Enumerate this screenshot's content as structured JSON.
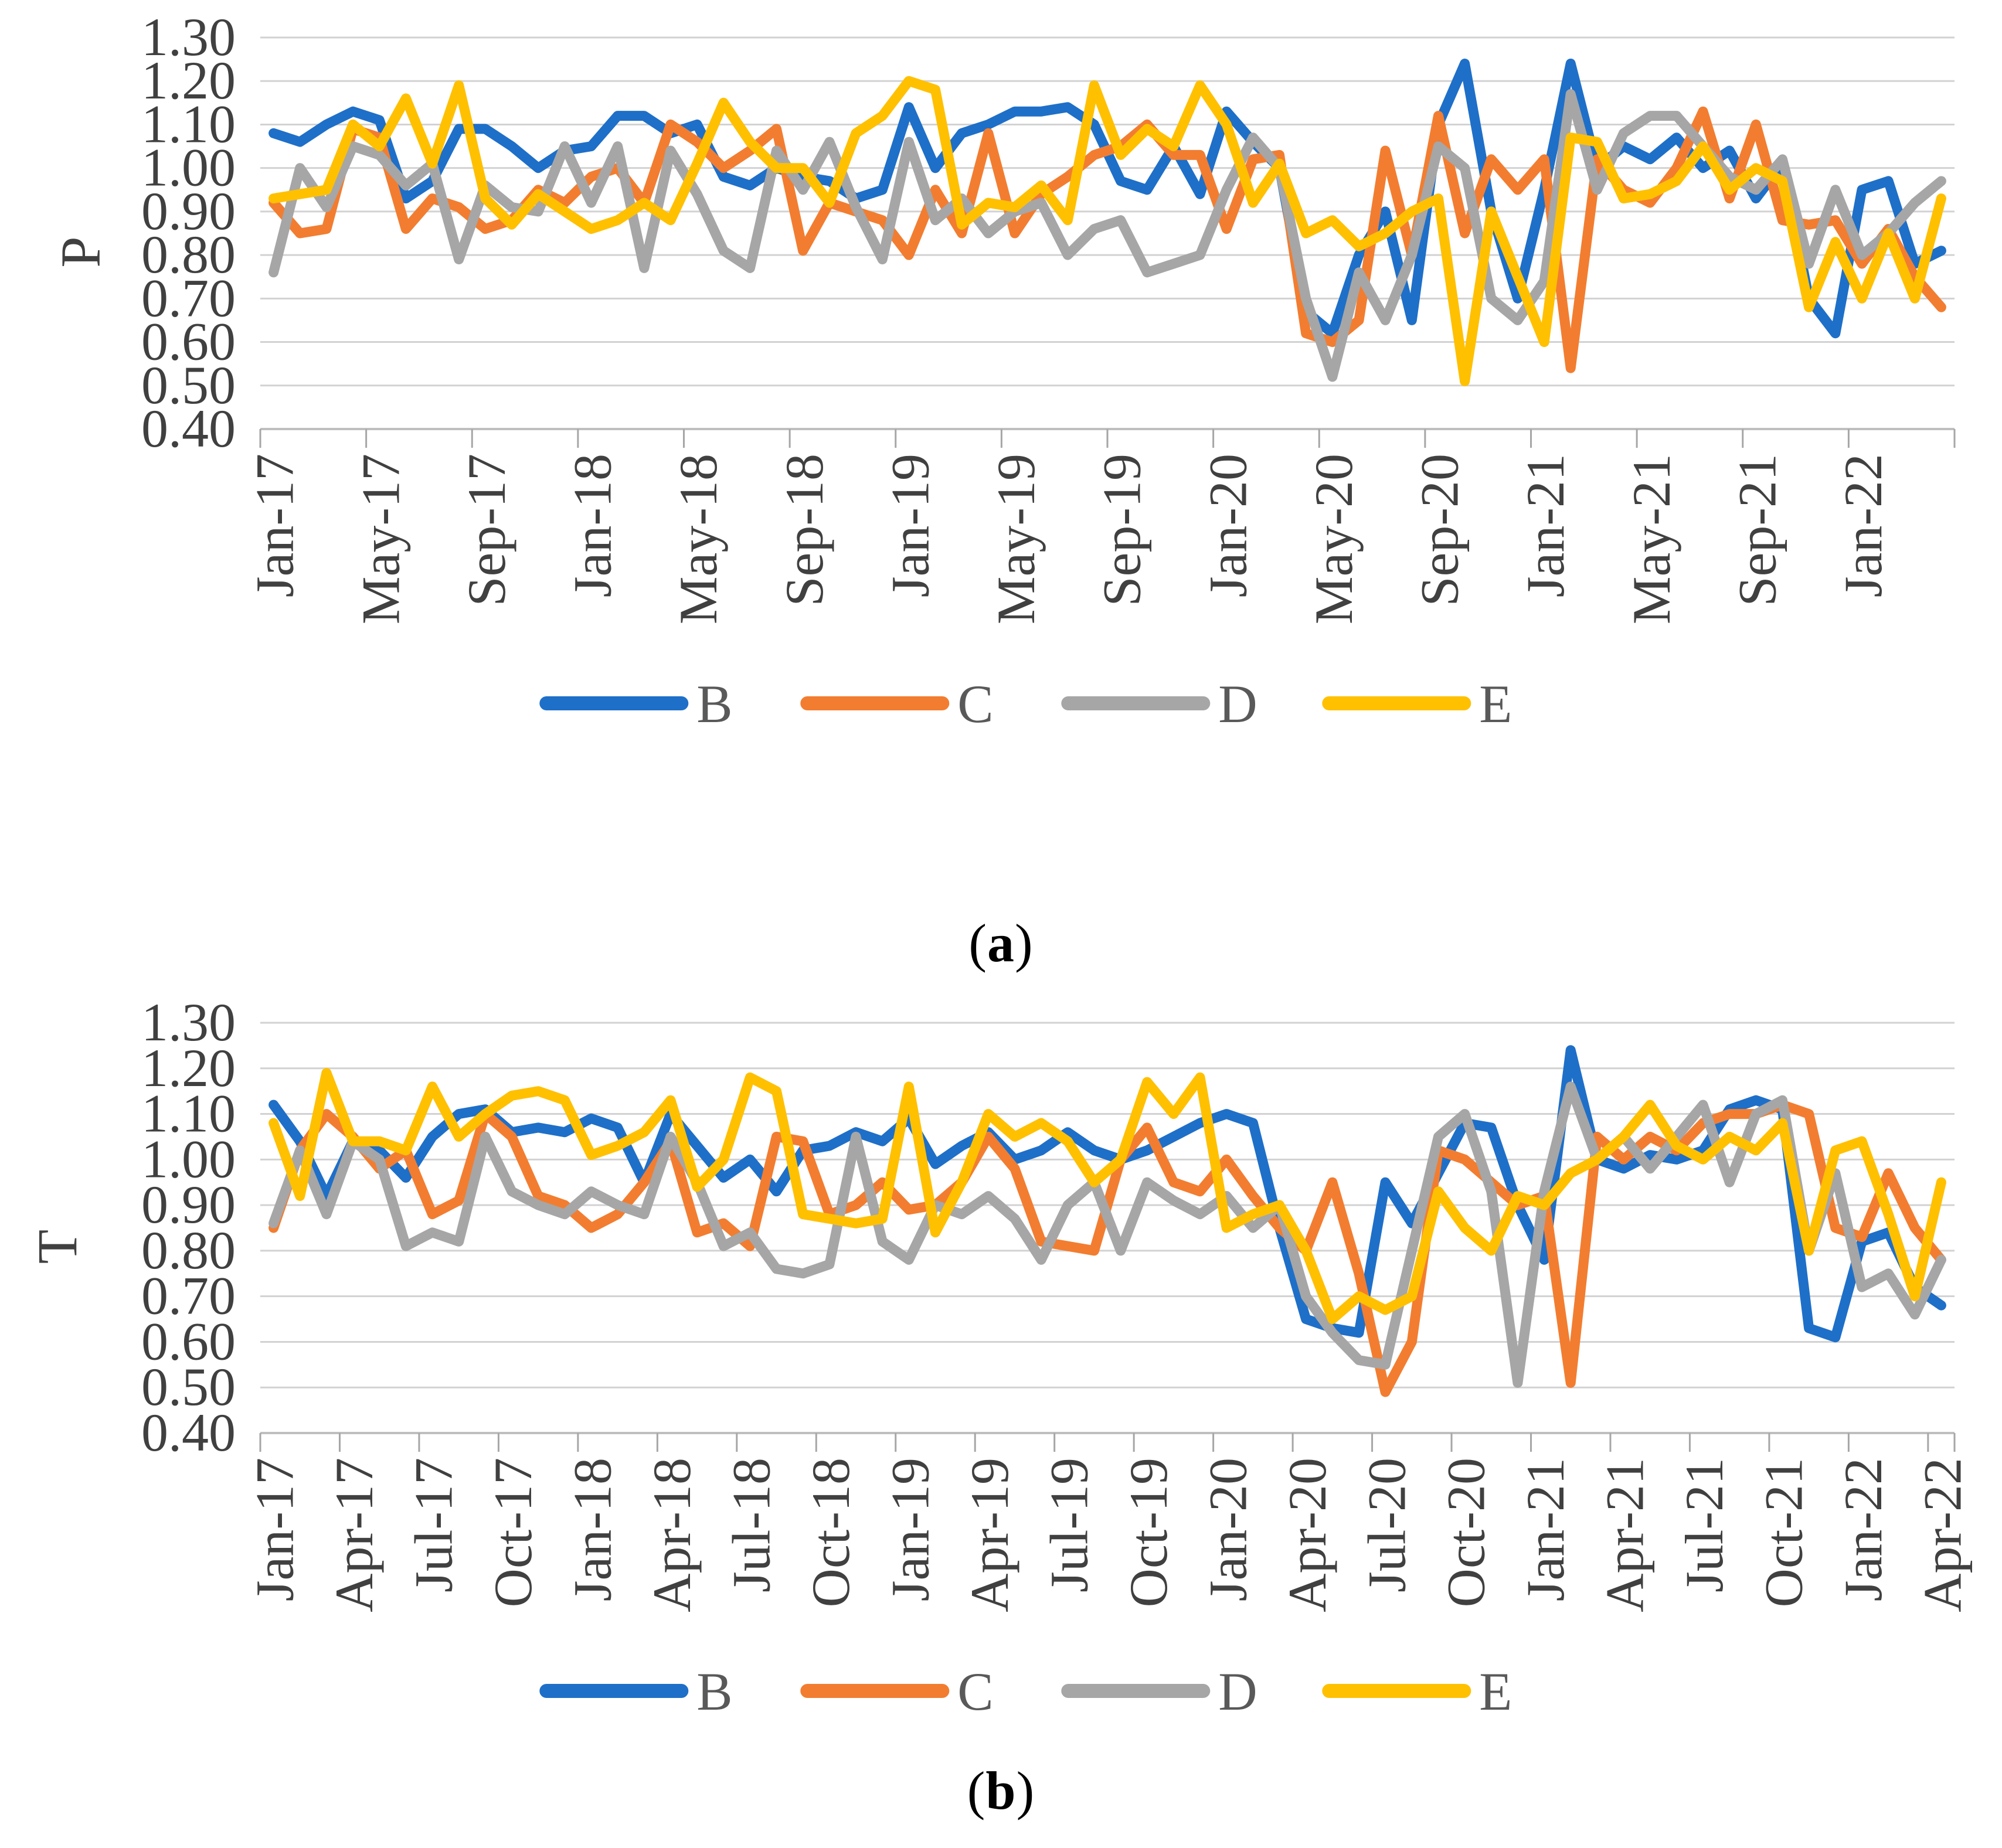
{
  "figure": {
    "charts": [
      {
        "ylabel": "P",
        "caption_open": "(",
        "caption_letter": "a",
        "caption_close": ")"
      },
      {
        "ylabel": "T",
        "caption_open": "(",
        "caption_letter": "b",
        "caption_close": ")"
      }
    ]
  },
  "colors": {
    "series_b": "#1E6FC8",
    "series_c": "#F27D30",
    "series_d": "#A6A6A6",
    "series_e": "#FFC000",
    "grid": "#D2D2D2",
    "axis": "#BFBFBF",
    "tick": "#A6A6A6",
    "text": "#404040",
    "legend_text": "#595959"
  },
  "chart_data": [
    {
      "type": "line",
      "title": "",
      "xlabel": "",
      "ylabel": "P",
      "ylim": [
        0.4,
        1.3
      ],
      "ytick_labels": [
        "1.30",
        "1.20",
        "1.10",
        "1.00",
        "0.90",
        "0.80",
        "0.70",
        "0.60",
        "0.50",
        "0.40"
      ],
      "grid": true,
      "legend_position": "bottom",
      "x_tick_every": 4,
      "x_tick_labels": [
        "Jan-17",
        "May-17",
        "Sep-17",
        "Jan-18",
        "May-18",
        "Sep-18",
        "Jan-19",
        "May-19",
        "Sep-19",
        "Jan-20",
        "May-20",
        "Sep-20",
        "Jan-21",
        "May-21",
        "Sep-21",
        "Jan-22"
      ],
      "categories": [
        "Jan-17",
        "Feb-17",
        "Mar-17",
        "Apr-17",
        "May-17",
        "Jun-17",
        "Jul-17",
        "Aug-17",
        "Sep-17",
        "Oct-17",
        "Nov-17",
        "Dec-17",
        "Jan-18",
        "Feb-18",
        "Mar-18",
        "Apr-18",
        "May-18",
        "Jun-18",
        "Jul-18",
        "Aug-18",
        "Sep-18",
        "Oct-18",
        "Nov-18",
        "Dec-18",
        "Jan-19",
        "Feb-19",
        "Mar-19",
        "Apr-19",
        "May-19",
        "Jun-19",
        "Jul-19",
        "Aug-19",
        "Sep-19",
        "Oct-19",
        "Nov-19",
        "Dec-19",
        "Jan-20",
        "Feb-20",
        "Mar-20",
        "Apr-20",
        "May-20",
        "Jun-20",
        "Jul-20",
        "Aug-20",
        "Sep-20",
        "Oct-20",
        "Nov-20",
        "Dec-20",
        "Jan-21",
        "Feb-21",
        "Mar-21",
        "Apr-21",
        "May-21",
        "Jun-21",
        "Jul-21",
        "Aug-21",
        "Sep-21",
        "Oct-21",
        "Nov-21",
        "Dec-21",
        "Jan-22",
        "Feb-22",
        "Mar-22",
        "Apr-22"
      ],
      "series": [
        {
          "name": "B",
          "color": "#1E6FC8",
          "values": [
            1.08,
            1.06,
            1.1,
            1.13,
            1.11,
            0.93,
            0.97,
            1.09,
            1.09,
            1.05,
            1.0,
            1.04,
            1.05,
            1.12,
            1.12,
            1.08,
            1.1,
            0.98,
            0.96,
            1.0,
            0.98,
            0.97,
            0.93,
            0.95,
            1.14,
            1.0,
            1.08,
            1.1,
            1.13,
            1.13,
            1.14,
            1.1,
            0.97,
            0.95,
            1.05,
            0.94,
            1.13,
            1.06,
            1.0,
            0.67,
            0.62,
            0.8,
            0.9,
            0.65,
            1.1,
            1.24,
            0.9,
            0.7,
            0.95,
            1.24,
            1.0,
            1.05,
            1.02,
            1.07,
            1.0,
            1.04,
            0.93,
            1.01,
            0.7,
            0.62,
            0.95,
            0.97,
            0.78,
            0.81
          ]
        },
        {
          "name": "C",
          "color": "#F27D30",
          "values": [
            0.92,
            0.85,
            0.86,
            1.09,
            1.07,
            0.86,
            0.93,
            0.91,
            0.86,
            0.88,
            0.95,
            0.92,
            0.98,
            1.0,
            0.92,
            1.1,
            1.06,
            1.0,
            1.04,
            1.09,
            0.81,
            0.92,
            0.9,
            0.88,
            0.8,
            0.95,
            0.85,
            1.08,
            0.85,
            0.94,
            0.98,
            1.03,
            1.05,
            1.1,
            1.03,
            1.03,
            0.86,
            1.02,
            1.03,
            0.62,
            0.6,
            0.65,
            1.04,
            0.8,
            1.12,
            0.85,
            1.02,
            0.95,
            1.02,
            0.54,
            1.02,
            0.95,
            0.92,
            1.0,
            1.13,
            0.93,
            1.1,
            0.88,
            0.87,
            0.88,
            0.78,
            0.86,
            0.75,
            0.68
          ]
        },
        {
          "name": "D",
          "color": "#A6A6A6",
          "values": [
            0.76,
            1.0,
            0.91,
            1.05,
            1.03,
            0.96,
            1.01,
            0.79,
            0.96,
            0.91,
            0.9,
            1.05,
            0.92,
            1.05,
            0.77,
            1.04,
            0.94,
            0.81,
            0.77,
            1.04,
            0.95,
            1.06,
            0.91,
            0.79,
            1.06,
            0.88,
            0.93,
            0.85,
            0.9,
            0.92,
            0.8,
            0.86,
            0.88,
            0.76,
            0.78,
            0.8,
            0.95,
            1.07,
            1.0,
            0.7,
            0.52,
            0.76,
            0.65,
            0.8,
            1.05,
            1.0,
            0.7,
            0.65,
            0.74,
            1.17,
            0.95,
            1.08,
            1.12,
            1.12,
            1.05,
            0.98,
            0.95,
            1.02,
            0.78,
            0.95,
            0.8,
            0.85,
            0.92,
            0.97
          ]
        },
        {
          "name": "E",
          "color": "#FFC000",
          "values": [
            0.93,
            0.94,
            0.95,
            1.1,
            1.05,
            1.16,
            1.01,
            1.19,
            0.93,
            0.87,
            0.94,
            0.9,
            0.86,
            0.88,
            0.92,
            0.88,
            1.01,
            1.15,
            1.06,
            1.0,
            1.0,
            0.92,
            1.08,
            1.12,
            1.2,
            1.18,
            0.87,
            0.92,
            0.91,
            0.96,
            0.88,
            1.19,
            1.03,
            1.09,
            1.05,
            1.19,
            1.1,
            0.92,
            1.01,
            0.85,
            0.88,
            0.82,
            0.85,
            0.9,
            0.93,
            0.51,
            0.9,
            0.75,
            0.6,
            1.07,
            1.06,
            0.93,
            0.94,
            0.97,
            1.05,
            0.95,
            1.0,
            0.97,
            0.68,
            0.83,
            0.7,
            0.85,
            0.7,
            0.93
          ]
        }
      ]
    },
    {
      "type": "line",
      "title": "",
      "xlabel": "",
      "ylabel": "T",
      "ylim": [
        0.4,
        1.3
      ],
      "ytick_labels": [
        "1.30",
        "1.20",
        "1.10",
        "1.00",
        "0.90",
        "0.80",
        "0.70",
        "0.60",
        "0.50",
        "0.40"
      ],
      "grid": true,
      "legend_position": "bottom",
      "x_tick_every": 3,
      "x_tick_labels": [
        "Jan-17",
        "Apr-17",
        "Jul-17",
        "Oct-17",
        "Jan-18",
        "Apr-18",
        "Jul-18",
        "Oct-18",
        "Jan-19",
        "Apr-19",
        "Jul-19",
        "Oct-19",
        "Jan-20",
        "Apr-20",
        "Jul-20",
        "Oct-20",
        "Jan-21",
        "Apr-21",
        "Jul-21",
        "Oct-21",
        "Jan-22",
        "Apr-22"
      ],
      "categories": [
        "Jan-17",
        "Feb-17",
        "Mar-17",
        "Apr-17",
        "May-17",
        "Jun-17",
        "Jul-17",
        "Aug-17",
        "Sep-17",
        "Oct-17",
        "Nov-17",
        "Dec-17",
        "Jan-18",
        "Feb-18",
        "Mar-18",
        "Apr-18",
        "May-18",
        "Jun-18",
        "Jul-18",
        "Aug-18",
        "Sep-18",
        "Oct-18",
        "Nov-18",
        "Dec-18",
        "Jan-19",
        "Feb-19",
        "Mar-19",
        "Apr-19",
        "May-19",
        "Jun-19",
        "Jul-19",
        "Aug-19",
        "Sep-19",
        "Oct-19",
        "Nov-19",
        "Dec-19",
        "Jan-20",
        "Feb-20",
        "Mar-20",
        "Apr-20",
        "May-20",
        "Jun-20",
        "Jul-20",
        "Aug-20",
        "Sep-20",
        "Oct-20",
        "Nov-20",
        "Dec-20",
        "Jan-21",
        "Feb-21",
        "Mar-21",
        "Apr-21",
        "May-21",
        "Jun-21",
        "Jul-21",
        "Aug-21",
        "Sep-21",
        "Oct-21",
        "Nov-21",
        "Dec-21",
        "Jan-22",
        "Feb-22",
        "Mar-22",
        "Apr-22"
      ],
      "series": [
        {
          "name": "B",
          "color": "#1E6FC8",
          "values": [
            1.12,
            1.04,
            0.92,
            1.04,
            1.02,
            0.96,
            1.05,
            1.1,
            1.11,
            1.06,
            1.07,
            1.06,
            1.09,
            1.07,
            0.95,
            1.1,
            1.03,
            0.96,
            1.0,
            0.93,
            1.02,
            1.03,
            1.06,
            1.04,
            1.09,
            0.99,
            1.03,
            1.06,
            1.0,
            1.02,
            1.06,
            1.02,
            1.0,
            1.02,
            1.05,
            1.08,
            1.1,
            1.08,
            0.85,
            0.65,
            0.63,
            0.62,
            0.95,
            0.86,
            0.97,
            1.08,
            1.07,
            0.9,
            0.78,
            1.24,
            1.0,
            0.98,
            1.01,
            1.0,
            1.02,
            1.11,
            1.13,
            1.11,
            0.63,
            0.61,
            0.82,
            0.84,
            0.72,
            0.68
          ]
        },
        {
          "name": "C",
          "color": "#F27D30",
          "values": [
            0.85,
            1.02,
            1.1,
            1.05,
            0.98,
            1.02,
            0.88,
            0.91,
            1.1,
            1.05,
            0.92,
            0.9,
            0.85,
            0.88,
            0.95,
            1.04,
            0.84,
            0.86,
            0.81,
            1.05,
            1.04,
            0.88,
            0.9,
            0.95,
            0.89,
            0.9,
            0.95,
            1.05,
            0.98,
            0.82,
            0.81,
            0.8,
            1.0,
            1.07,
            0.95,
            0.93,
            1.0,
            0.92,
            0.85,
            0.8,
            0.95,
            0.75,
            0.49,
            0.6,
            1.02,
            1.0,
            0.95,
            0.9,
            0.92,
            0.51,
            1.05,
            1.0,
            1.05,
            1.02,
            1.08,
            1.1,
            1.1,
            1.12,
            1.1,
            0.85,
            0.83,
            0.97,
            0.85,
            0.78
          ]
        },
        {
          "name": "D",
          "color": "#A6A6A6",
          "values": [
            0.86,
            1.02,
            0.88,
            1.04,
            1.0,
            0.81,
            0.84,
            0.82,
            1.05,
            0.93,
            0.9,
            0.88,
            0.93,
            0.9,
            0.88,
            1.05,
            0.95,
            0.81,
            0.84,
            0.76,
            0.75,
            0.77,
            1.05,
            0.82,
            0.78,
            0.9,
            0.88,
            0.92,
            0.87,
            0.78,
            0.9,
            0.95,
            0.8,
            0.95,
            0.91,
            0.88,
            0.92,
            0.85,
            0.9,
            0.7,
            0.62,
            0.56,
            0.55,
            0.8,
            1.05,
            1.1,
            0.93,
            0.51,
            0.93,
            1.16,
            1.0,
            1.05,
            0.98,
            1.05,
            1.12,
            0.95,
            1.1,
            1.13,
            0.8,
            0.97,
            0.72,
            0.75,
            0.66,
            0.78
          ]
        },
        {
          "name": "E",
          "color": "#FFC000",
          "values": [
            1.08,
            0.92,
            1.19,
            1.04,
            1.04,
            1.02,
            1.16,
            1.05,
            1.1,
            1.14,
            1.15,
            1.13,
            1.01,
            1.03,
            1.06,
            1.13,
            0.94,
            1.0,
            1.18,
            1.15,
            0.88,
            0.87,
            0.86,
            0.87,
            1.16,
            0.84,
            0.95,
            1.1,
            1.05,
            1.08,
            1.04,
            0.95,
            1.0,
            1.17,
            1.1,
            1.18,
            0.85,
            0.88,
            0.9,
            0.8,
            0.65,
            0.7,
            0.67,
            0.7,
            0.93,
            0.85,
            0.8,
            0.92,
            0.9,
            0.97,
            1.0,
            1.05,
            1.12,
            1.03,
            1.0,
            1.05,
            1.02,
            1.08,
            0.8,
            1.02,
            1.04,
            0.88,
            0.7,
            0.95
          ]
        }
      ]
    }
  ]
}
